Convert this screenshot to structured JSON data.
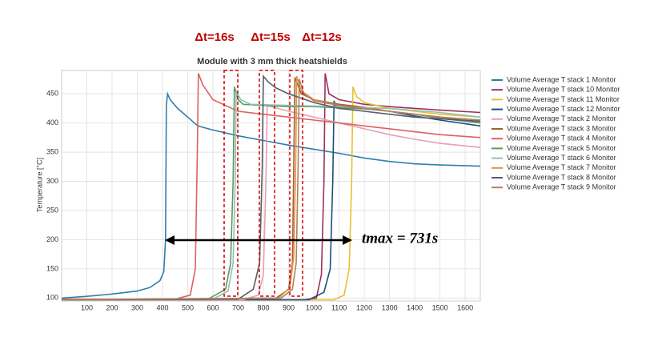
{
  "chart_data": {
    "type": "line",
    "title": "Module with 3 mm thick heatshields",
    "y_label": "Temperature [°C]",
    "annotations": [
      "Δt=16s",
      "Δt=15s",
      "Δt=12s",
      "tmax = 731s"
    ],
    "xlim": [
      0,
      1660
    ],
    "ylim": [
      95,
      490
    ],
    "xticks": [
      100,
      200,
      300,
      400,
      500,
      600,
      700,
      800,
      900,
      1000,
      1100,
      1200,
      1300,
      1400,
      1500,
      1600
    ],
    "yticks": [
      100,
      150,
      200,
      250,
      300,
      350,
      400,
      450
    ],
    "grid": true,
    "legend": "right",
    "series": [
      {
        "name": "Volume Average T stack 1 Monitor",
        "color": "#2e7fa8",
        "x": [
          0,
          100,
          200,
          300,
          350,
          390,
          405,
          412,
          415,
          420,
          430,
          460,
          500,
          540,
          600,
          700,
          800,
          900,
          1000,
          1100,
          1200,
          1300,
          1400,
          1500,
          1660
        ],
        "values": [
          100,
          103,
          107,
          112,
          118,
          130,
          145,
          200,
          430,
          450,
          440,
          425,
          410,
          395,
          388,
          378,
          370,
          362,
          355,
          348,
          340,
          334,
          330,
          328,
          326
        ]
      },
      {
        "name": "Volume Average T stack 10 Monitor",
        "color": "#9b3060",
        "x": [
          0,
          960,
          1010,
          1030,
          1040,
          1045,
          1060,
          1100,
          1200,
          1300,
          1400,
          1500,
          1660
        ],
        "values": [
          97,
          97,
          100,
          140,
          300,
          485,
          450,
          440,
          432,
          428,
          425,
          422,
          418
        ]
      },
      {
        "name": "Volume Average T stack 11 Monitor",
        "color": "#e8c030",
        "x": [
          0,
          1080,
          1120,
          1140,
          1150,
          1155,
          1170,
          1200,
          1300,
          1400,
          1500,
          1660
        ],
        "values": [
          97,
          97,
          105,
          150,
          300,
          462,
          445,
          435,
          425,
          420,
          415,
          410
        ]
      },
      {
        "name": "Volume Average T stack 12 Monitor",
        "color": "#1f4e79",
        "x": [
          0,
          980,
          1040,
          1065,
          1075,
          1080,
          1085,
          1100,
          1200,
          1300,
          1400,
          1500,
          1660
        ],
        "values": [
          97,
          97,
          110,
          150,
          300,
          438,
          430,
          428,
          425,
          420,
          412,
          405,
          395
        ]
      },
      {
        "name": "Volume Average T stack 2 Monitor",
        "color": "#e8a0b0",
        "x": [
          0,
          720,
          780,
          800,
          810,
          815,
          830,
          900,
          1000,
          1100,
          1200,
          1300,
          1400,
          1500,
          1660
        ],
        "values": [
          97,
          97,
          105,
          140,
          300,
          430,
          428,
          420,
          410,
          400,
          390,
          380,
          372,
          365,
          358
        ]
      },
      {
        "name": "Volume Average T stack 3 Monitor",
        "color": "#a06030",
        "x": [
          0,
          850,
          900,
          915,
          920,
          925,
          950,
          1000,
          1100,
          1200,
          1300,
          1400,
          1500,
          1660
        ],
        "values": [
          97,
          100,
          115,
          160,
          320,
          478,
          450,
          440,
          432,
          427,
          420,
          415,
          410,
          400
        ]
      },
      {
        "name": "Volume Average T stack 4 Monitor",
        "color": "#e06060",
        "x": [
          0,
          450,
          510,
          530,
          538,
          542,
          560,
          600,
          700,
          800,
          900,
          1000,
          1100,
          1200,
          1300,
          1400,
          1500,
          1660
        ],
        "values": [
          98,
          98,
          105,
          150,
          350,
          485,
          465,
          440,
          420,
          415,
          410,
          405,
          400,
          395,
          390,
          385,
          380,
          375
        ]
      },
      {
        "name": "Volume Average T stack 5 Monitor",
        "color": "#5a9a5a",
        "x": [
          0,
          580,
          650,
          670,
          680,
          685,
          700,
          720,
          800,
          900,
          1000,
          1100,
          1200,
          1300,
          1400,
          1500,
          1660
        ],
        "values": [
          97,
          98,
          115,
          160,
          300,
          462,
          440,
          432,
          430,
          428,
          428,
          426,
          424,
          420,
          415,
          408,
          400
        ]
      },
      {
        "name": "Volume Average T stack 6 Monitor",
        "color": "#8fc0b8",
        "x": [
          0,
          600,
          660,
          680,
          688,
          692,
          710,
          750,
          900,
          1100,
          1300,
          1500,
          1660
        ],
        "values": [
          97,
          98,
          112,
          160,
          300,
          455,
          440,
          432,
          430,
          428,
          425,
          418,
          410
        ]
      },
      {
        "name": "Volume Average T stack 7 Monitor",
        "color": "#e89040",
        "x": [
          0,
          860,
          905,
          920,
          928,
          932,
          950,
          1000,
          1100,
          1200,
          1300,
          1400,
          1500,
          1660
        ],
        "values": [
          97,
          100,
          118,
          170,
          330,
          480,
          455,
          440,
          430,
          425,
          420,
          415,
          410,
          405
        ]
      },
      {
        "name": "Volume Average T stack 8 Monitor",
        "color": "#5a5a70",
        "x": [
          0,
          700,
          760,
          785,
          795,
          800,
          820,
          850,
          900,
          1000,
          1100,
          1200,
          1300,
          1400,
          1500,
          1660
        ],
        "values": [
          97,
          98,
          115,
          160,
          320,
          480,
          470,
          460,
          450,
          435,
          425,
          420,
          415,
          410,
          407,
          403
        ]
      },
      {
        "name": "Volume Average T stack 9 Monitor",
        "color": "#b08060",
        "x": [
          0,
          870,
          915,
          930,
          938,
          942,
          960,
          1000,
          1100,
          1200,
          1300,
          1400,
          1500,
          1660
        ],
        "values": [
          97,
          100,
          115,
          160,
          330,
          475,
          450,
          438,
          430,
          425,
          420,
          415,
          410,
          405
        ]
      }
    ]
  }
}
